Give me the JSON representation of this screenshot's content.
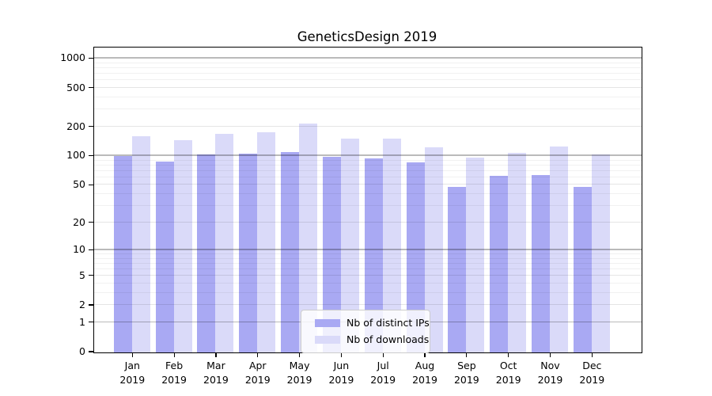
{
  "chart_data": {
    "type": "bar",
    "title": "GeneticsDesign 2019",
    "categories": [
      "Jan",
      "Feb",
      "Mar",
      "Apr",
      "May",
      "Jun",
      "Jul",
      "Aug",
      "Sep",
      "Oct",
      "Nov",
      "Dec"
    ],
    "category_year": "2019",
    "series": [
      {
        "name": "Nb of distinct IPs",
        "color": "#a9a9f3",
        "values": [
          100,
          88,
          104,
          105,
          110,
          99,
          95,
          86,
          48,
          62,
          64,
          48
        ]
      },
      {
        "name": "Nb of downloads",
        "color": "#dadaf9",
        "values": [
          161,
          145,
          168,
          177,
          215,
          150,
          151,
          122,
          97,
          108,
          126,
          104
        ]
      }
    ],
    "y_ticks": [
      0,
      1,
      2,
      5,
      10,
      20,
      50,
      100,
      200,
      500,
      1000
    ],
    "y_scale": "log10(value+1)",
    "ylim": [
      0,
      1200
    ],
    "grid": true,
    "legend_position": "bottom-center",
    "colors": {
      "axis": "#000000",
      "major_gridline": "#bfbfbf",
      "minor_gridline": "#efefef",
      "background": "#ffffff"
    }
  }
}
